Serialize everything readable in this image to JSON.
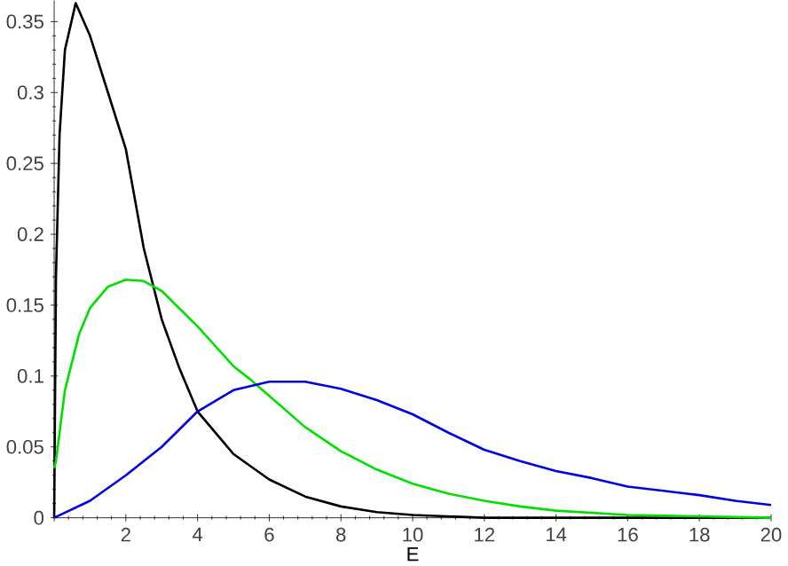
{
  "chart_data": {
    "type": "line",
    "xlabel": "E",
    "xlim": [
      0,
      20
    ],
    "ylim": [
      0,
      0.365
    ],
    "xticks": [
      {
        "value": 0,
        "label": null
      },
      2,
      4,
      6,
      8,
      10,
      12,
      14,
      16,
      18,
      20
    ],
    "yticks": [
      0,
      0.05,
      0.1,
      0.15,
      0.2,
      0.25,
      0.3,
      0.35
    ],
    "marker": "none",
    "line_style": "solid",
    "series": [
      {
        "color": "#000000",
        "x": [
          0,
          0.05,
          0.15,
          0.3,
          0.6,
          1,
          1.5,
          2,
          2.5,
          3,
          3.5,
          4,
          5,
          6,
          7,
          8,
          9,
          10,
          12,
          20
        ],
        "values": [
          0,
          0.17,
          0.27,
          0.33,
          0.363,
          0.34,
          0.3,
          0.26,
          0.19,
          0.14,
          0.105,
          0.075,
          0.045,
          0.027,
          0.015,
          0.008,
          0.004,
          0.002,
          0,
          0
        ]
      },
      {
        "color": "#00e000",
        "x": [
          0,
          0.05,
          0.3,
          0.7,
          1,
          1.5,
          2,
          2.5,
          3,
          4,
          5,
          5.5,
          6,
          7,
          8,
          9,
          10,
          11,
          12,
          13,
          14,
          16,
          20
        ],
        "values": [
          0.035,
          0.04,
          0.09,
          0.13,
          0.148,
          0.163,
          0.168,
          0.167,
          0.16,
          0.135,
          0.107,
          0.097,
          0.086,
          0.064,
          0.047,
          0.034,
          0.024,
          0.017,
          0.012,
          0.008,
          0.005,
          0.002,
          0
        ]
      },
      {
        "color": "#0000e0",
        "x": [
          0,
          1,
          2,
          3,
          4,
          5,
          6,
          7,
          8,
          9,
          10,
          11,
          12,
          13,
          14,
          15,
          16,
          17,
          18,
          19,
          20
        ],
        "values": [
          0,
          0.012,
          0.03,
          0.05,
          0.075,
          0.09,
          0.096,
          0.096,
          0.091,
          0.083,
          0.073,
          0.06,
          0.048,
          0.04,
          0.033,
          0.028,
          0.022,
          0.019,
          0.016,
          0.012,
          0.009
        ]
      }
    ]
  }
}
